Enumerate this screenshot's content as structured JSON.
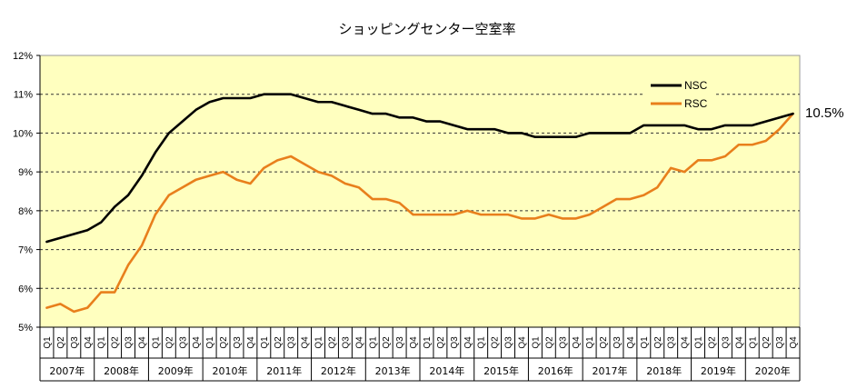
{
  "chart_data": {
    "type": "line",
    "title": "ショッピングセンター空室率",
    "xlabel": "",
    "ylabel": "",
    "ylim": [
      5,
      12
    ],
    "yticks": [
      5,
      6,
      7,
      8,
      9,
      10,
      11,
      12
    ],
    "ytick_labels": [
      "5%",
      "6%",
      "7%",
      "8%",
      "9%",
      "10%",
      "11%",
      "12%"
    ],
    "grid": true,
    "legend_position": "upper-right",
    "quarter_labels": [
      "Q1",
      "Q2",
      "Q3",
      "Q4"
    ],
    "years": [
      "2007年",
      "2008年",
      "2009年",
      "2010年",
      "2011年",
      "2012年",
      "2013年",
      "2014年",
      "2015年",
      "2016年",
      "2017年",
      "2018年",
      "2019年",
      "2020年"
    ],
    "series": [
      {
        "name": "NSC",
        "color": "#000000",
        "values": [
          7.2,
          7.3,
          7.4,
          7.5,
          7.7,
          8.1,
          8.4,
          8.9,
          9.5,
          10.0,
          10.3,
          10.6,
          10.8,
          10.9,
          10.9,
          10.9,
          11.0,
          11.0,
          11.0,
          10.9,
          10.8,
          10.8,
          10.7,
          10.6,
          10.5,
          10.5,
          10.4,
          10.4,
          10.3,
          10.3,
          10.2,
          10.1,
          10.1,
          10.1,
          10.0,
          10.0,
          9.9,
          9.9,
          9.9,
          9.9,
          10.0,
          10.0,
          10.0,
          10.0,
          10.2,
          10.2,
          10.2,
          10.2,
          10.1,
          10.1,
          10.2,
          10.2,
          10.2,
          10.3,
          10.4,
          10.5
        ]
      },
      {
        "name": "RSC",
        "color": "#E87F1C",
        "values": [
          5.5,
          5.6,
          5.4,
          5.5,
          5.9,
          5.9,
          6.6,
          7.1,
          7.9,
          8.4,
          8.6,
          8.8,
          8.9,
          9.0,
          8.8,
          8.7,
          9.1,
          9.3,
          9.4,
          9.2,
          9.0,
          8.9,
          8.7,
          8.6,
          8.3,
          8.3,
          8.2,
          7.9,
          7.9,
          7.9,
          7.9,
          8.0,
          7.9,
          7.9,
          7.9,
          7.8,
          7.8,
          7.9,
          7.8,
          7.8,
          7.9,
          8.1,
          8.3,
          8.3,
          8.4,
          8.6,
          9.1,
          9.0,
          9.3,
          9.3,
          9.4,
          9.7,
          9.7,
          9.8,
          10.1,
          10.5
        ]
      }
    ],
    "annotation": "10.5%"
  },
  "colors": {
    "plot_background": "#FFFFBF",
    "grid": "#333333",
    "frame": "#999999"
  }
}
